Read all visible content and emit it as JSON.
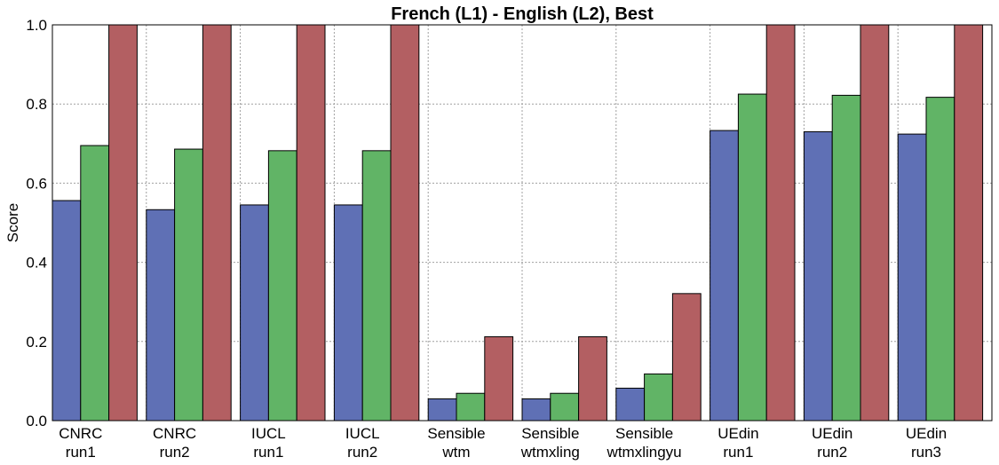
{
  "chart_data": {
    "type": "bar",
    "title": "French (L1) - English (L2), Best",
    "xlabel": "",
    "ylabel": "Score",
    "ylim": [
      0,
      1.0
    ],
    "yticks": [
      "0.0",
      "0.2",
      "0.4",
      "0.6",
      "0.8",
      "1.0"
    ],
    "grid": true,
    "categories": [
      [
        "CNRC",
        "run1"
      ],
      [
        "CNRC",
        "run2"
      ],
      [
        "IUCL",
        "run1"
      ],
      [
        "IUCL",
        "run2"
      ],
      [
        "Sensible",
        "wtm"
      ],
      [
        "Sensible",
        "wtmxling"
      ],
      [
        "Sensible",
        "wtmxlingyu"
      ],
      [
        "UEdin",
        "run1"
      ],
      [
        "UEdin",
        "run2"
      ],
      [
        "UEdin",
        "run3"
      ]
    ],
    "series": [
      {
        "color": "#5f70b5",
        "values": [
          0.556,
          0.533,
          0.545,
          0.545,
          0.055,
          0.055,
          0.082,
          0.733,
          0.73,
          0.724
        ]
      },
      {
        "color": "#61b466",
        "values": [
          0.695,
          0.686,
          0.682,
          0.682,
          0.069,
          0.069,
          0.118,
          0.825,
          0.822,
          0.817
        ]
      },
      {
        "color": "#b35f62",
        "values": [
          1.0,
          1.0,
          1.0,
          1.0,
          0.212,
          0.212,
          0.321,
          1.0,
          1.0,
          1.0
        ]
      }
    ]
  }
}
